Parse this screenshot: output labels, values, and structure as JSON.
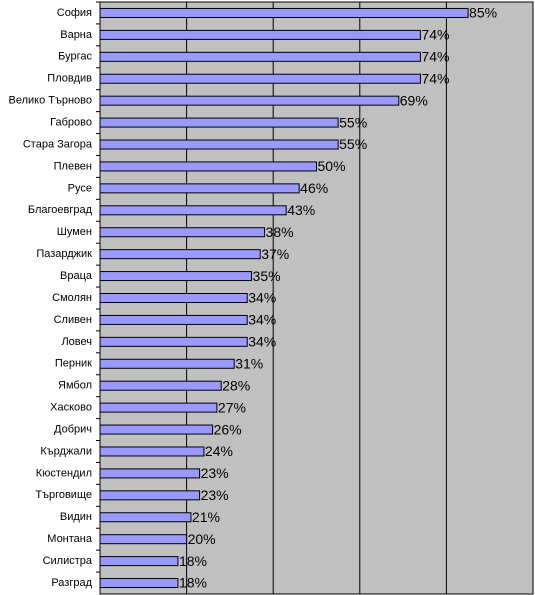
{
  "chart_data": {
    "type": "barh",
    "categories": [
      "София",
      "Варна",
      "Бургас",
      "Пловдив",
      "Велико Търново",
      "Габрово",
      "Стара Загора",
      "Плевен",
      "Русе",
      "Благоевград",
      "Шумен",
      "Пазарджик",
      "Враца",
      "Смолян",
      "Сливен",
      "Ловеч",
      "Перник",
      "Ямбол",
      "Хасково",
      "Добрич",
      "Кърджали",
      "Кюстендил",
      "Търговище",
      "Видин",
      "Монтана",
      "Силистра",
      "Разград"
    ],
    "values": [
      85,
      74,
      74,
      74,
      69,
      55,
      55,
      50,
      46,
      43,
      38,
      37,
      35,
      34,
      34,
      34,
      31,
      28,
      27,
      26,
      24,
      23,
      23,
      21,
      20,
      18,
      18
    ],
    "value_labels": [
      "85%",
      "74%",
      "74%",
      "74%",
      "69%",
      "55%",
      "55%",
      "50%",
      "46%",
      "43%",
      "38%",
      "37%",
      "35%",
      "34%",
      "34%",
      "34%",
      "31%",
      "28%",
      "27%",
      "26%",
      "24%",
      "23%",
      "23%",
      "21%",
      "20%",
      "18%",
      "18%"
    ],
    "color": "#9999ff",
    "xlim": [
      0,
      100
    ],
    "xticks": [
      0,
      20,
      40,
      60,
      80,
      100
    ],
    "grid": true
  }
}
